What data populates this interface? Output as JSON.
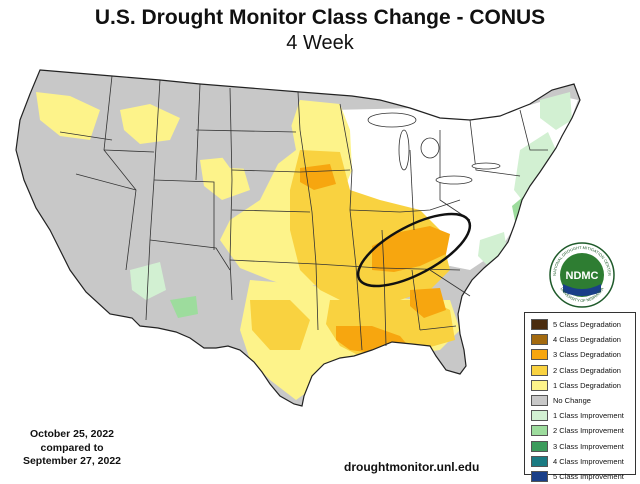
{
  "header": {
    "title": "U.S. Drought Monitor Class Change - CONUS",
    "subtitle": "4 Week"
  },
  "comparison": {
    "date_current": "October 25, 2022",
    "compared_label": "compared to",
    "date_previous": "September 27, 2022"
  },
  "source_url": "droughtmonitor.unl.edu",
  "logo": {
    "text": "NDMC",
    "ring_text_top": "NATIONAL DROUGHT MITIGATION CENTER",
    "ring_text_bottom": "UNIVERSITY OF NEBRASKA",
    "colors": {
      "ring": "#1e5a2a",
      "center": "#2e7d32"
    }
  },
  "legend": {
    "items": [
      {
        "label": "5 Class Degradation",
        "color": "#4a2c0f"
      },
      {
        "label": "4 Class Degradation",
        "color": "#a36a0f"
      },
      {
        "label": "3 Class Degradation",
        "color": "#f7a60f"
      },
      {
        "label": "2 Class Degradation",
        "color": "#f9d240"
      },
      {
        "label": "1 Class Degradation",
        "color": "#fdf38a"
      },
      {
        "label": "No Change",
        "color": "#c8c8c8"
      },
      {
        "label": "1 Class Improvement",
        "color": "#d2f0d2"
      },
      {
        "label": "2 Class Improvement",
        "color": "#9ddc9d"
      },
      {
        "label": "3 Class Improvement",
        "color": "#3c9c5c"
      },
      {
        "label": "4 Class Improvement",
        "color": "#1a7a82"
      },
      {
        "label": "5 Class Improvement",
        "color": "#1a3f88"
      }
    ]
  },
  "map_colors": {
    "no_change": "#c8c8c8",
    "deg1": "#fdf38a",
    "deg2": "#f9d240",
    "deg3": "#f7a60f",
    "imp1": "#d2f0d2",
    "imp2": "#9ddc9d",
    "imp3": "#3c9c5c",
    "no_drought": "#ffffff",
    "state_lines": "#333333",
    "annotation_ellipse": "#111111"
  }
}
